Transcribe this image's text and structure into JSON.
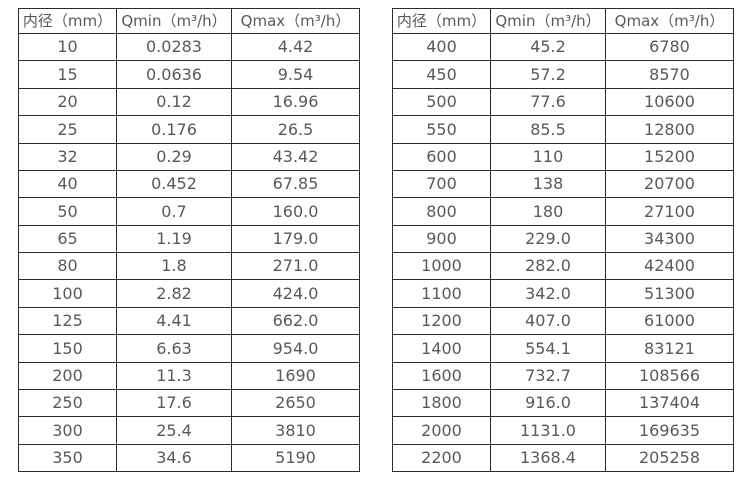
{
  "page": {
    "background": "#ffffff",
    "border_color": "#2b2b2b",
    "text_color": "#595959"
  },
  "chart_data": [
    {
      "type": "table",
      "title": "",
      "columns": [
        "内径（mm）",
        "Qmin（m³/h）",
        "Qmax（m³/h）"
      ],
      "rows": [
        [
          "10",
          "0.0283",
          "4.42"
        ],
        [
          "15",
          "0.0636",
          "9.54"
        ],
        [
          "20",
          "0.12",
          "16.96"
        ],
        [
          "25",
          "0.176",
          "26.5"
        ],
        [
          "32",
          "0.29",
          "43.42"
        ],
        [
          "40",
          "0.452",
          "67.85"
        ],
        [
          "50",
          "0.7",
          "160.0"
        ],
        [
          "65",
          "1.19",
          "179.0"
        ],
        [
          "80",
          "1.8",
          "271.0"
        ],
        [
          "100",
          "2.82",
          "424.0"
        ],
        [
          "125",
          "4.41",
          "662.0"
        ],
        [
          "150",
          "6.63",
          "954.0"
        ],
        [
          "200",
          "11.3",
          "1690"
        ],
        [
          "250",
          "17.6",
          "2650"
        ],
        [
          "300",
          "25.4",
          "3810"
        ],
        [
          "350",
          "34.6",
          "5190"
        ]
      ]
    },
    {
      "type": "table",
      "title": "",
      "columns": [
        "内径（mm）",
        "Qmin（m³/h）",
        "Qmax（m³/h）"
      ],
      "rows": [
        [
          "400",
          "45.2",
          "6780"
        ],
        [
          "450",
          "57.2",
          "8570"
        ],
        [
          "500",
          "77.6",
          "10600"
        ],
        [
          "550",
          "85.5",
          "12800"
        ],
        [
          "600",
          "110",
          "15200"
        ],
        [
          "700",
          "138",
          "20700"
        ],
        [
          "800",
          "180",
          "27100"
        ],
        [
          "900",
          "229.0",
          "34300"
        ],
        [
          "1000",
          "282.0",
          "42400"
        ],
        [
          "1100",
          "342.0",
          "51300"
        ],
        [
          "1200",
          "407.0",
          "61000"
        ],
        [
          "1400",
          "554.1",
          "83121"
        ],
        [
          "1600",
          "732.7",
          "108566"
        ],
        [
          "1800",
          "916.0",
          "137404"
        ],
        [
          "2000",
          "1131.0",
          "169635"
        ],
        [
          "2200",
          "1368.4",
          "205258"
        ]
      ]
    }
  ]
}
